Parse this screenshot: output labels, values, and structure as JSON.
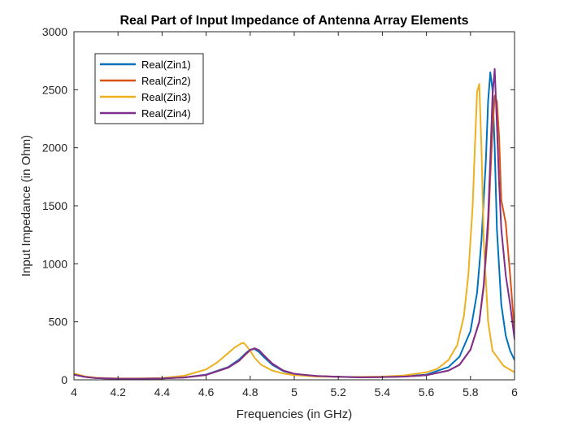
{
  "chart_data": {
    "type": "line",
    "title": "Real Part of Input Impedance of Antenna Array Elements",
    "xlabel": "Frequencies (in GHz)",
    "ylabel": "Input Impedance (in Ohm)",
    "xlim": [
      4,
      6
    ],
    "ylim": [
      0,
      3000
    ],
    "xticks": [
      4,
      4.2,
      4.4,
      4.6,
      4.8,
      5,
      5.2,
      5.4,
      5.6,
      5.8,
      6
    ],
    "yticks": [
      0,
      500,
      1000,
      1500,
      2000,
      2500,
      3000
    ],
    "grid": false,
    "legend_position": "top-left",
    "series": [
      {
        "name": "Real(Zin1)",
        "color": "#0072BD",
        "x": [
          4,
          4.05,
          4.1,
          4.2,
          4.3,
          4.4,
          4.5,
          4.6,
          4.7,
          4.75,
          4.78,
          4.8,
          4.82,
          4.84,
          4.86,
          4.9,
          4.95,
          5,
          5.1,
          5.2,
          5.3,
          5.4,
          5.5,
          5.6,
          5.7,
          5.75,
          5.8,
          5.83,
          5.85,
          5.87,
          5.88,
          5.89,
          5.9,
          5.91,
          5.92,
          5.94,
          5.96,
          5.98,
          6
        ],
        "y": [
          45,
          25,
          15,
          10,
          10,
          12,
          20,
          45,
          110,
          175,
          230,
          260,
          265,
          240,
          200,
          130,
          75,
          50,
          32,
          25,
          22,
          24,
          30,
          45,
          110,
          200,
          420,
          750,
          1200,
          1900,
          2400,
          2650,
          2500,
          2000,
          1300,
          650,
          380,
          250,
          170
        ]
      },
      {
        "name": "Real(Zin2)",
        "color": "#D95319",
        "x": [
          4,
          4.05,
          4.1,
          4.2,
          4.3,
          4.4,
          4.5,
          4.6,
          4.7,
          4.75,
          4.78,
          4.8,
          4.82,
          4.84,
          4.86,
          4.9,
          4.95,
          5,
          5.1,
          5.2,
          5.3,
          5.4,
          5.5,
          5.6,
          5.7,
          5.75,
          5.8,
          5.84,
          5.86,
          5.88,
          5.89,
          5.9,
          5.91,
          5.92,
          5.93,
          5.94,
          5.96,
          5.98,
          6
        ],
        "y": [
          45,
          25,
          15,
          10,
          10,
          12,
          20,
          42,
          105,
          165,
          220,
          255,
          270,
          255,
          215,
          140,
          80,
          52,
          33,
          26,
          22,
          24,
          28,
          40,
          80,
          130,
          260,
          500,
          800,
          1300,
          1750,
          2150,
          2450,
          2400,
          2100,
          1550,
          1350,
          900,
          420
        ]
      },
      {
        "name": "Real(Zin3)",
        "color": "#EDB120",
        "x": [
          4,
          4.05,
          4.1,
          4.2,
          4.3,
          4.4,
          4.5,
          4.6,
          4.65,
          4.7,
          4.73,
          4.76,
          4.77,
          4.78,
          4.8,
          4.82,
          4.85,
          4.9,
          4.95,
          5,
          5.1,
          5.2,
          5.3,
          5.4,
          5.5,
          5.6,
          5.65,
          5.7,
          5.74,
          5.77,
          5.79,
          5.81,
          5.82,
          5.83,
          5.84,
          5.85,
          5.86,
          5.88,
          5.9,
          5.95,
          6
        ],
        "y": [
          55,
          30,
          18,
          12,
          12,
          16,
          35,
          90,
          150,
          230,
          280,
          315,
          318,
          300,
          250,
          190,
          130,
          80,
          55,
          40,
          28,
          25,
          25,
          28,
          38,
          65,
          95,
          170,
          300,
          550,
          900,
          1500,
          2000,
          2480,
          2550,
          2000,
          1200,
          500,
          250,
          120,
          65
        ]
      },
      {
        "name": "Real(Zin4)",
        "color": "#7E2F8E",
        "x": [
          4,
          4.05,
          4.1,
          4.2,
          4.3,
          4.4,
          4.5,
          4.6,
          4.7,
          4.75,
          4.78,
          4.8,
          4.82,
          4.84,
          4.86,
          4.9,
          4.95,
          5,
          5.1,
          5.2,
          5.3,
          5.4,
          5.5,
          5.6,
          5.7,
          5.75,
          5.8,
          5.84,
          5.86,
          5.88,
          5.89,
          5.9,
          5.91,
          5.92,
          5.93,
          5.94,
          5.96,
          5.98,
          6
        ],
        "y": [
          45,
          25,
          15,
          10,
          10,
          12,
          20,
          42,
          105,
          165,
          225,
          258,
          272,
          255,
          215,
          140,
          80,
          52,
          33,
          26,
          22,
          24,
          28,
          40,
          80,
          130,
          260,
          500,
          820,
          1400,
          1900,
          2450,
          2680,
          2200,
          1700,
          1300,
          900,
          650,
          350
        ]
      }
    ]
  }
}
